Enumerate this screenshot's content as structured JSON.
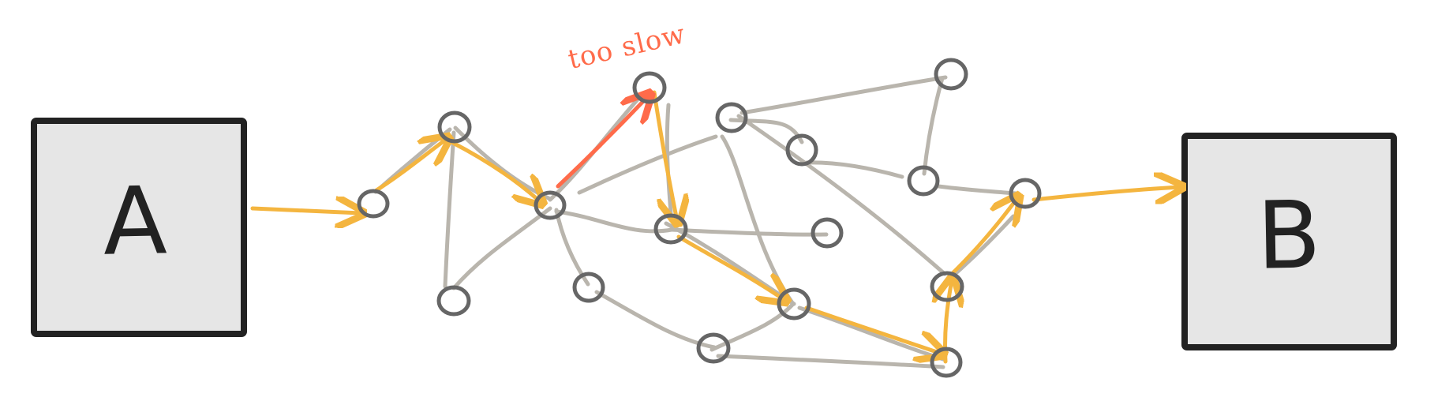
{
  "diagram": {
    "title": "",
    "source_label": "A",
    "target_label": "B",
    "annotation": "too slow"
  },
  "colors": {
    "node_stroke": "#666666",
    "edge": "#b9b5ad",
    "path": "#f4b53f",
    "slow_path": "#ff6b4a",
    "box_fill": "#e6e6e6",
    "box_stroke": "#222222"
  }
}
